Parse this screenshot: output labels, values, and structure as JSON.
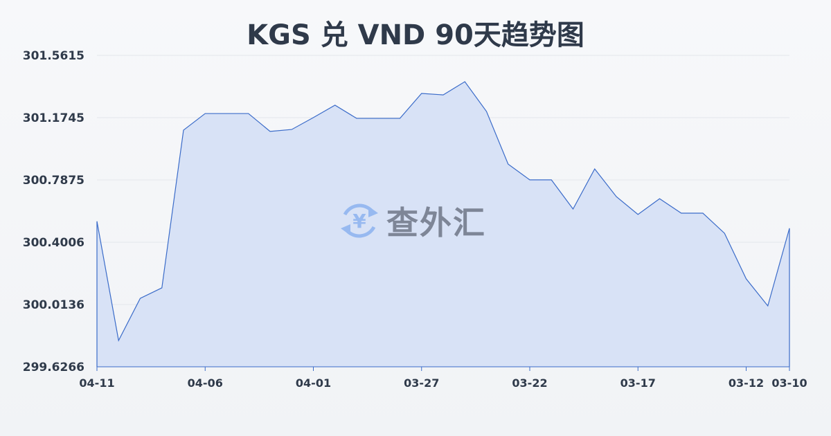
{
  "chart_data": {
    "type": "area",
    "title": "KGS 兑 VND 90天趋势图",
    "xlabel": "",
    "ylabel": "",
    "ylim": [
      299.6266,
      301.5615
    ],
    "yticks": [
      "301.5615",
      "301.1745",
      "300.7875",
      "300.4006",
      "300.0136",
      "299.6266"
    ],
    "x": [
      "04-11",
      "04-10",
      "04-09",
      "04-08",
      "04-07",
      "04-06",
      "04-05",
      "04-04",
      "04-03",
      "04-02",
      "04-01",
      "03-31",
      "03-30",
      "03-29",
      "03-28",
      "03-27",
      "03-26",
      "03-25",
      "03-24",
      "03-23",
      "03-22",
      "03-21",
      "03-20",
      "03-19",
      "03-18",
      "03-17",
      "03-16",
      "03-15",
      "03-14",
      "03-13",
      "03-12",
      "03-11",
      "03-10"
    ],
    "xticks": [
      "04-11",
      "04-06",
      "04-01",
      "03-27",
      "03-22",
      "03-17",
      "03-12",
      "03-10"
    ],
    "values": [
      300.53,
      299.79,
      300.052,
      300.117,
      301.097,
      301.2,
      301.2,
      301.2,
      301.089,
      301.101,
      301.175,
      301.252,
      301.17,
      301.17,
      301.17,
      301.325,
      301.316,
      301.398,
      301.213,
      300.886,
      300.788,
      300.788,
      300.607,
      300.856,
      300.684,
      300.573,
      300.671,
      300.581,
      300.581,
      300.456,
      300.173,
      300.005,
      300.487
    ],
    "grid": true,
    "colors": {
      "line": "#3a6bc9",
      "fill": "#d6e0f5",
      "grid": "#e3e6eb"
    }
  },
  "watermark": {
    "text": "查外汇",
    "icon": "yen-exchange-icon"
  }
}
